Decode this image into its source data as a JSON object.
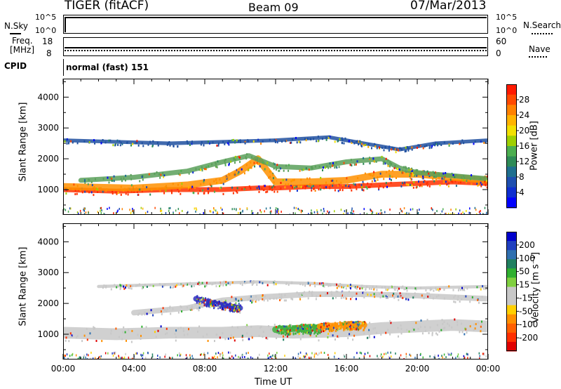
{
  "header": {
    "title": "TIGER (fitACF)",
    "beam": "Beam 09",
    "date": "07/Mar/2013"
  },
  "strip_panels": {
    "nsky_label": "N.Sky",
    "nsky_ticks": [
      "10^5",
      "10^0"
    ],
    "nsearch_label": "N.Search",
    "nsearch_ticks": [
      "10^5",
      "10^0"
    ],
    "freq_label_line1": "Freq.",
    "freq_label_line2": "[MHz]",
    "freq_ticks": [
      "18",
      "8"
    ],
    "nave_label": "Nave",
    "nave_ticks": [
      "60",
      "0"
    ],
    "cpid_label": "CPID",
    "cpid_value": "normal (fast) 151"
  },
  "chart_data": [
    {
      "type": "heatmap",
      "name": "power",
      "ylabel": "Slant Range [km]",
      "ylim": [
        180,
        4600
      ],
      "yticks": [
        1000,
        2000,
        3000,
        4000
      ],
      "xlim": [
        0,
        24
      ],
      "colorbar": {
        "label": "Power [dB]",
        "ticks": [
          "28",
          "24",
          "20",
          "16",
          "12",
          "8",
          "4"
        ],
        "colors": [
          "#ff1a00",
          "#ff4a00",
          "#ff8200",
          "#ffb400",
          "#f2e000",
          "#9fd000",
          "#4caf50",
          "#2e8b57",
          "#1f6f8f",
          "#1e4fb0",
          "#0f2fd0",
          "#0000ff"
        ]
      },
      "bands": [
        {
          "color": "#ff3000",
          "points": [
            [
              0,
              1000
            ],
            [
              3,
              950
            ],
            [
              6,
              1000
            ],
            [
              9,
              1000
            ],
            [
              11,
              1050
            ],
            [
              12,
              1050
            ],
            [
              14,
              1100
            ],
            [
              16,
              1100
            ],
            [
              18,
              1150
            ],
            [
              20,
              1200
            ],
            [
              22,
              1250
            ],
            [
              24,
              1200
            ]
          ],
          "width": 160
        },
        {
          "color": "#ff9000",
          "points": [
            [
              0,
              1100
            ],
            [
              4,
              1050
            ],
            [
              7,
              1150
            ],
            [
              9,
              1300
            ],
            [
              10,
              1600
            ],
            [
              11,
              2000
            ],
            [
              12,
              1250
            ],
            [
              14,
              1250
            ],
            [
              16,
              1300
            ],
            [
              18,
              1500
            ],
            [
              20,
              1500
            ],
            [
              22,
              1400
            ],
            [
              24,
              1300
            ]
          ],
          "width": 220
        },
        {
          "color": "#5aa05a",
          "points": [
            [
              1,
              1300
            ],
            [
              4,
              1400
            ],
            [
              7,
              1600
            ],
            [
              9,
              1900
            ],
            [
              10.5,
              2100
            ],
            [
              12,
              1750
            ],
            [
              14,
              1700
            ],
            [
              16,
              1900
            ],
            [
              18,
              2000
            ],
            [
              19,
              1700
            ],
            [
              20,
              1550
            ],
            [
              22,
              1450
            ],
            [
              24,
              1350
            ]
          ],
          "width": 160
        },
        {
          "color": "#2050a0",
          "points": [
            [
              0,
              2600
            ],
            [
              3,
              2550
            ],
            [
              6,
              2500
            ],
            [
              9,
              2550
            ],
            [
              12,
              2600
            ],
            [
              15,
              2700
            ],
            [
              17,
              2500
            ],
            [
              19,
              2300
            ],
            [
              21,
              2500
            ],
            [
              24,
              2600
            ]
          ],
          "width": 120
        }
      ]
    },
    {
      "type": "heatmap",
      "name": "velocity",
      "ylabel": "Slant Range [km]",
      "xlabel": "Time UT",
      "ylim": [
        180,
        4600
      ],
      "yticks": [
        1000,
        2000,
        3000,
        4000
      ],
      "xlim": [
        0,
        24
      ],
      "xticks": [
        "00:00",
        "04:00",
        "08:00",
        "12:00",
        "16:00",
        "20:00",
        "00:00"
      ],
      "colorbar": {
        "label": "Velocity [m s⁻¹]",
        "ticks": [
          "200",
          "100",
          "50",
          "15",
          "-15",
          "-50",
          "-100",
          "-200"
        ],
        "colors": [
          "#0000cc",
          "#2040c0",
          "#3070b0",
          "#208060",
          "#30b030",
          "#80d040",
          "#c8c8c8",
          "#c8c8c8",
          "#ffd000",
          "#ff9000",
          "#ff6000",
          "#ff3000",
          "#e00000"
        ]
      },
      "bands": [
        {
          "color": "#c8c8c8",
          "points": [
            [
              0,
              1050
            ],
            [
              3,
              1000
            ],
            [
              6,
              1050
            ],
            [
              9,
              1050
            ],
            [
              11,
              1100
            ],
            [
              13,
              1050
            ],
            [
              16,
              1100
            ],
            [
              18,
              1200
            ],
            [
              20,
              1250
            ],
            [
              22,
              1300
            ],
            [
              24,
              1250
            ]
          ],
          "width": 380
        },
        {
          "color": "#c8c8c8",
          "points": [
            [
              4,
              1700
            ],
            [
              7,
              1850
            ],
            [
              9,
              2100
            ],
            [
              11,
              2200
            ],
            [
              14,
              2300
            ],
            [
              17,
              2300
            ],
            [
              20,
              2250
            ],
            [
              24,
              2150
            ]
          ],
          "width": 180
        },
        {
          "color": "#3030c0",
          "points": [
            [
              7.5,
              2150
            ],
            [
              8.5,
              2000
            ],
            [
              9.5,
              1900
            ],
            [
              10,
              1850
            ]
          ],
          "width": 180
        },
        {
          "color": "#40b040",
          "points": [
            [
              12,
              1150
            ],
            [
              13.5,
              1200
            ],
            [
              14.5,
              1200
            ]
          ],
          "width": 220
        },
        {
          "color": "#ff9000",
          "points": [
            [
              14.5,
              1250
            ],
            [
              16,
              1300
            ],
            [
              17,
              1300
            ]
          ],
          "width": 200
        },
        {
          "color": "#c8c8c8",
          "points": [
            [
              2,
              2550
            ],
            [
              5,
              2600
            ],
            [
              8,
              2650
            ],
            [
              11,
              2700
            ],
            [
              14,
              2650
            ],
            [
              17,
              2550
            ],
            [
              20,
              2500
            ],
            [
              24,
              2550
            ]
          ],
          "width": 100
        }
      ]
    }
  ],
  "colors": {
    "frame": "#000000",
    "background": "#ffffff"
  }
}
